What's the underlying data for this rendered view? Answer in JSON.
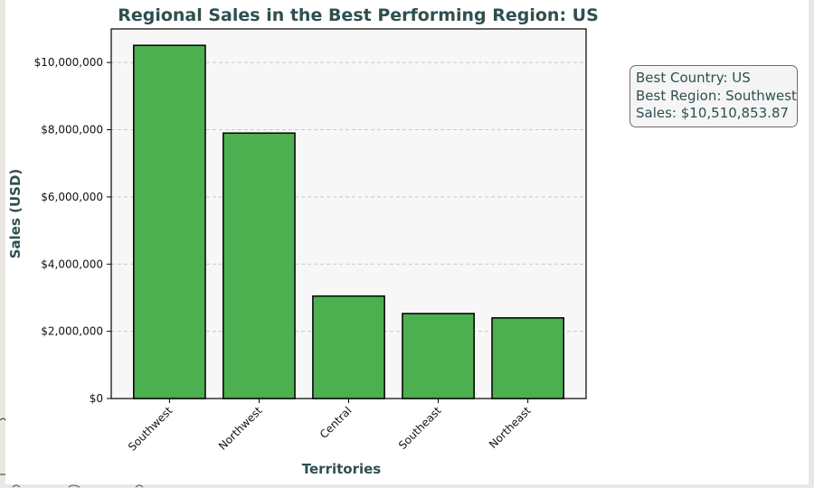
{
  "chart_data": {
    "type": "bar",
    "title": "Regional Sales in the Best Performing Region: US",
    "xlabel": "Territories",
    "ylabel": "Sales (USD)",
    "categories": [
      "Southwest",
      "Northwest",
      "Central",
      "Southeast",
      "Northeast"
    ],
    "values": [
      10510853.87,
      7900000,
      3050000,
      2530000,
      2400000
    ],
    "ylim": [
      0,
      11000000
    ],
    "yticks": [
      0,
      2000000,
      4000000,
      6000000,
      8000000,
      10000000
    ],
    "ytick_labels": [
      "$0",
      "$2,000,000",
      "$4,000,000",
      "$6,000,000",
      "$8,000,000",
      "$10,000,000"
    ],
    "grid": "y-dashed",
    "bar_color": "#4caf50",
    "bar_edge_color": "#000000",
    "plot_bg": "#f7f7f7",
    "annotation": {
      "line1": "Best Country: US",
      "line2": "Best Region: Southwest",
      "line3": "Sales: $10,510,853.87"
    }
  }
}
